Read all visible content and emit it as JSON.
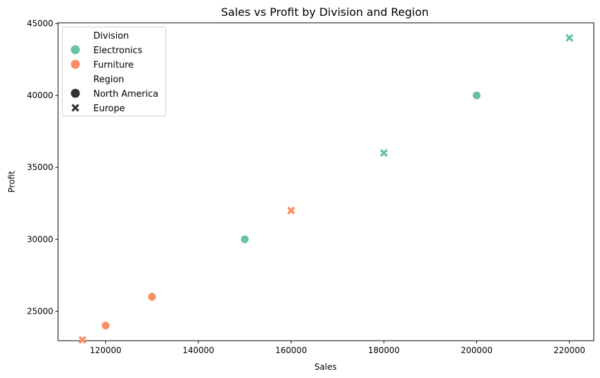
{
  "chart_data": {
    "type": "scatter",
    "title": "Sales vs Profit by Division and Region",
    "xlabel": "Sales",
    "ylabel": "Profit",
    "xlim": [
      109750,
      225250
    ],
    "ylim": [
      22950,
      45050
    ],
    "xticks": [
      120000,
      140000,
      160000,
      180000,
      200000,
      220000
    ],
    "yticks": [
      25000,
      30000,
      35000,
      40000,
      45000
    ],
    "grid": false,
    "legend_position": "top-left",
    "hue_title": "Division",
    "style_title": "Region",
    "divisions": [
      {
        "name": "Electronics",
        "color": "#66c2a5"
      },
      {
        "name": "Furniture",
        "color": "#fc8d62"
      }
    ],
    "regions": [
      {
        "name": "North America",
        "marker": "circle"
      },
      {
        "name": "Europe",
        "marker": "x"
      }
    ],
    "points": [
      {
        "x": 150000,
        "y": 30000,
        "division": "Electronics",
        "region": "North America"
      },
      {
        "x": 200000,
        "y": 40000,
        "division": "Electronics",
        "region": "North America"
      },
      {
        "x": 180000,
        "y": 36000,
        "division": "Electronics",
        "region": "Europe"
      },
      {
        "x": 220000,
        "y": 44000,
        "division": "Electronics",
        "region": "Europe"
      },
      {
        "x": 120000,
        "y": 24000,
        "division": "Furniture",
        "region": "North America"
      },
      {
        "x": 130000,
        "y": 26000,
        "division": "Furniture",
        "region": "North America"
      },
      {
        "x": 115000,
        "y": 23000,
        "division": "Furniture",
        "region": "Europe"
      },
      {
        "x": 160000,
        "y": 32000,
        "division": "Furniture",
        "region": "Europe"
      }
    ]
  }
}
